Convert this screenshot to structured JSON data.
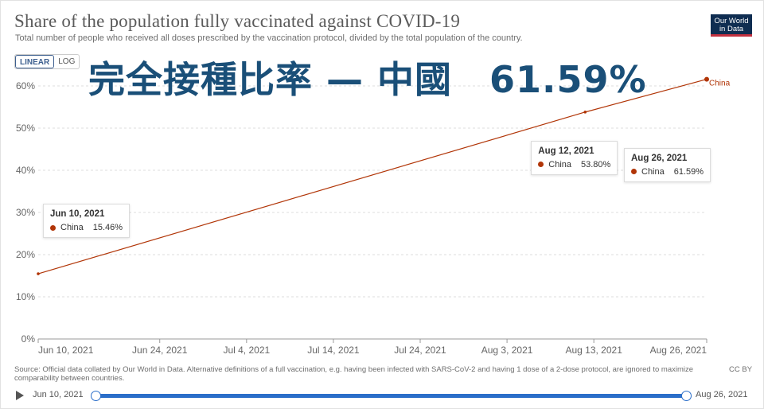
{
  "header": {
    "title": "Share of the population fully vaccinated against COVID-19",
    "subtitle": "Total number of people who received all doses prescribed by the vaccination protocol, divided by the total population of the country.",
    "logo_line1": "Our World",
    "logo_line2": "in Data"
  },
  "controls": {
    "linear_label": "LINEAR",
    "log_label": "LOG"
  },
  "overlay_text": "完全接種比率 — 中國　61.59%",
  "chart_data": {
    "type": "line",
    "title": "Share of the population fully vaccinated against COVID-19",
    "x_ticks": [
      "Jun 10, 2021",
      "Jun 24, 2021",
      "Jul 4, 2021",
      "Jul 14, 2021",
      "Jul 24, 2021",
      "Aug 3, 2021",
      "Aug 13, 2021",
      "Aug 26, 2021"
    ],
    "y_ticks": [
      "0%",
      "10%",
      "20%",
      "30%",
      "40%",
      "50%",
      "60%"
    ],
    "ylim": [
      0,
      60
    ],
    "series": [
      {
        "name": "China",
        "color": "#b13507",
        "points": [
          {
            "x": "Jun 10, 2021",
            "y": 15.46
          },
          {
            "x": "Aug 12, 2021",
            "y": 53.8
          },
          {
            "x": "Aug 26, 2021",
            "y": 61.59
          }
        ]
      }
    ],
    "tooltips": [
      {
        "date": "Jun 10, 2021",
        "country": "China",
        "value": "15.46%"
      },
      {
        "date": "Aug 12, 2021",
        "country": "China",
        "value": "53.80%"
      },
      {
        "date": "Aug 26, 2021",
        "country": "China",
        "value": "61.59%"
      }
    ],
    "grid": true,
    "line_label": "China"
  },
  "footer": {
    "source": "Source: Official data collated by Our World in Data. Alternative definitions of a full vaccination, e.g. having been infected with SARS-CoV-2 and having 1 dose of a 2-dose protocol, are ignored to maximize comparability between countries.",
    "license": "CC BY"
  },
  "timeline": {
    "start_label": "Jun 10, 2021",
    "end_label": "Aug 26, 2021"
  }
}
